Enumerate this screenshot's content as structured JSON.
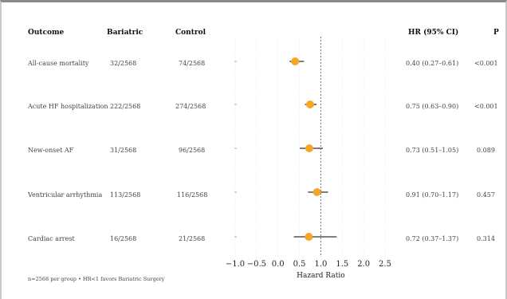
{
  "table": {
    "headers": {
      "outcome": "Outcome",
      "bariatric": "Bariatric",
      "control": "Control",
      "hr": "HR (95% CI)",
      "p": "P"
    },
    "rows": [
      {
        "outcome": "All-cause mortality",
        "bariatric": "32/2568",
        "control": "74/2568",
        "hr": "0.40 (0.27–0.61)",
        "p": "<0.001"
      },
      {
        "outcome": "Acute HF hospitalization",
        "bariatric": "222/2568",
        "control": "274/2568",
        "hr": "0.75 (0.63–0.90)",
        "p": "<0.001"
      },
      {
        "outcome": "New-onset AF",
        "bariatric": "31/2568",
        "control": "96/2568",
        "hr": "0.73 (0.51–1.05)",
        "p": "0.089"
      },
      {
        "outcome": "Ventricular arrhythmia",
        "bariatric": "113/2568",
        "control": "116/2568",
        "hr": "0.91 (0.70–1.17)",
        "p": "0.457"
      },
      {
        "outcome": "Cardiac arrest",
        "bariatric": "16/2568",
        "control": "21/2568",
        "hr": "0.72 (0.37–1.37)",
        "p": "0.314"
      }
    ],
    "footer": "n=2568 per group • HR<1 favors Bariatric Surgery"
  },
  "chart_data": {
    "type": "scatter",
    "subtype": "forest-plot",
    "categories": [
      "All-cause mortality",
      "Acute HF hospitalization",
      "New-onset AF",
      "Ventricular arrhythmia",
      "Cardiac arrest"
    ],
    "hr": [
      0.4,
      0.75,
      0.73,
      0.91,
      0.72
    ],
    "ci_low": [
      0.27,
      0.63,
      0.51,
      0.7,
      0.37
    ],
    "ci_high": [
      0.61,
      0.9,
      1.05,
      1.17,
      1.37
    ],
    "xlabel": "Hazard Ratio",
    "xlim": [
      -1.0,
      2.5
    ],
    "xticks": [
      -1.0,
      -0.5,
      0.0,
      0.5,
      1.0,
      1.5,
      2.0,
      2.5
    ],
    "xtick_labels": [
      "−1.0",
      "−0.5",
      "0.0",
      "0.5",
      "1.0",
      "1.5",
      "2.0",
      "2.5"
    ],
    "reference_line": 1.0,
    "grid": true,
    "colors": {
      "point": "#f5a623",
      "ci": "#555555",
      "reference": "#777777",
      "grid": "#e6e6e6"
    }
  }
}
